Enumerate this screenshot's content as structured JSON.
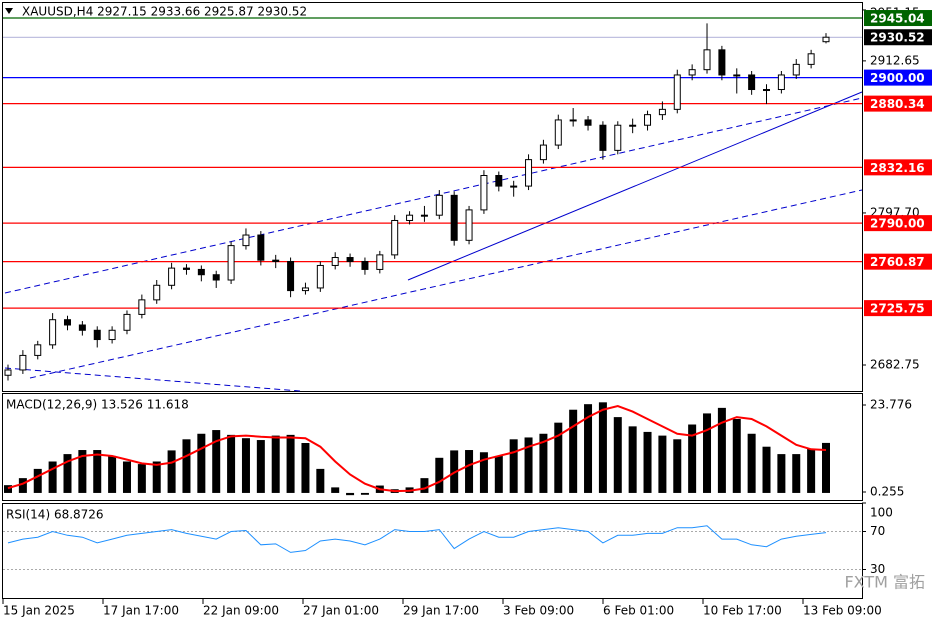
{
  "chart_data": {
    "type": "candlestick",
    "title": "XAUUSD,H4  2927.15 2933.66 2925.87 2930.52",
    "open": [
      2675,
      2679,
      2690,
      2698,
      2717,
      2713,
      2709,
      2702,
      2709,
      2721,
      2732,
      2743,
      2756,
      2755,
      2751,
      2747,
      2773,
      2781,
      2762,
      2761,
      2739,
      2741,
      2758,
      2764,
      2761,
      2755,
      2766,
      2792,
      2796,
      2796,
      2811,
      2777,
      2800,
      2826,
      2818,
      2818,
      2838,
      2849,
      2868,
      2868,
      2864,
      2845,
      2864,
      2864,
      2872,
      2876,
      2902,
      2906,
      2921,
      2902,
      2902,
      2891,
      2891,
      2902,
      2910,
      2927.15
    ],
    "high": [
      2683,
      2694,
      2701,
      2722,
      2720,
      2716,
      2712,
      2712,
      2724,
      2736,
      2747,
      2760,
      2759,
      2758,
      2754,
      2776,
      2786,
      2784,
      2766,
      2764,
      2745,
      2761,
      2768,
      2767,
      2764,
      2769,
      2796,
      2799,
      2803,
      2815,
      2814,
      2803,
      2830,
      2829,
      2822,
      2842,
      2853,
      2872,
      2877,
      2871,
      2867,
      2867,
      2869,
      2875,
      2882,
      2906,
      2910,
      2941,
      2924,
      2907,
      2905,
      2895,
      2905,
      2914,
      2921,
      2933.66
    ],
    "low": [
      2671,
      2676,
      2687,
      2695,
      2709,
      2705,
      2696,
      2699,
      2706,
      2718,
      2729,
      2740,
      2751,
      2746,
      2741,
      2744,
      2770,
      2758,
      2756,
      2734,
      2736,
      2738,
      2755,
      2757,
      2751,
      2752,
      2763,
      2789,
      2791,
      2793,
      2773,
      2774,
      2797,
      2814,
      2810,
      2815,
      2835,
      2846,
      2863,
      2860,
      2838,
      2842,
      2858,
      2860,
      2868,
      2873,
      2898,
      2903,
      2898,
      2888,
      2887,
      2880,
      2888,
      2899,
      2907,
      2925.87
    ],
    "close": [
      2679,
      2690,
      2698,
      2717,
      2713,
      2709,
      2702,
      2709,
      2721,
      2732,
      2743,
      2756,
      2755,
      2751,
      2747,
      2773,
      2781,
      2762,
      2761,
      2739,
      2741,
      2758,
      2764,
      2761,
      2755,
      2766,
      2792,
      2796,
      2796,
      2811,
      2777,
      2800,
      2826,
      2818,
      2818,
      2838,
      2849,
      2868,
      2868,
      2864,
      2845,
      2864,
      2864,
      2872,
      2876,
      2902,
      2906,
      2921,
      2902,
      2902,
      2891,
      2891,
      2902,
      2910,
      2918,
      2930.52
    ],
    "bull_color": "#ffffff",
    "bear_color": "#000000",
    "ylim": [
      2663.1,
      2956.4
    ],
    "yticks": [
      2951.15,
      2912.65,
      {
        "value": 2797.7,
        "label": "2797.70"
      },
      2682.75
    ],
    "levels": [
      {
        "value": 2945.04,
        "color": "#006400"
      },
      {
        "value": 2930.52,
        "color": "#000000"
      },
      {
        "value": 2900,
        "label": "2900.00",
        "color": "#0000ff"
      },
      {
        "value": 2880.34,
        "color": "#ff0000"
      },
      {
        "value": 2832.16,
        "color": "#ff0000"
      },
      {
        "value": 2790,
        "label": "2790.00",
        "color": "#ff0000"
      },
      {
        "value": 2760.87,
        "color": "#ff0000"
      },
      {
        "value": 2725.75,
        "color": "#ff0000"
      }
    ],
    "x_labels": [
      "15 Jan 2025",
      "17 Jan 17:00",
      "22 Jan 09:00",
      "27 Jan 01:00",
      "29 Jan 17:00",
      "3 Feb 09:00",
      "6 Feb 01:00",
      "10 Feb 17:00",
      "13 Feb 09:00"
    ],
    "macd": {
      "title": "MACD(12,26,9) 13.526 11.618",
      "histogram": [
        2.1,
        4.0,
        6.5,
        8.5,
        10.5,
        11.6,
        11.6,
        10.0,
        8.5,
        7.8,
        8.5,
        11.5,
        14.5,
        16.0,
        17.0,
        15.7,
        14.8,
        14.3,
        15.5,
        15.7,
        13.5,
        6.5,
        1.5,
        -0.6,
        -0.5,
        2.0,
        1.0,
        1.5,
        4.0,
        9.5,
        11.5,
        11.6,
        11.0,
        10.0,
        14.5,
        15.0,
        16.0,
        19.0,
        22.5,
        24.0,
        24.5,
        20.5,
        18.0,
        16.5,
        15.5,
        14.5,
        18.5,
        21.5,
        23.0,
        20.0,
        16.0,
        12.5,
        10.5,
        10.5,
        12.0,
        13.526
      ],
      "signal": [
        1.3,
        2.5,
        4.5,
        6.5,
        8.5,
        10.0,
        10.4,
        10.0,
        9.0,
        8.0,
        7.6,
        8.2,
        10.0,
        12.0,
        14.0,
        15.3,
        15.5,
        15.2,
        15.0,
        15.0,
        14.8,
        12.5,
        8.5,
        5.0,
        2.5,
        1.0,
        0.5,
        0.6,
        1.2,
        3.0,
        5.5,
        7.5,
        9.0,
        10.0,
        11.0,
        12.5,
        13.8,
        15.5,
        18.0,
        20.5,
        22.5,
        23.5,
        22.0,
        20.0,
        18.0,
        16.0,
        15.5,
        17.0,
        19.0,
        20.5,
        20.0,
        18.0,
        15.5,
        13.0,
        11.8,
        11.618
      ],
      "histogram_color": "#000000",
      "signal_color": "#ff0000",
      "ylim": [
        -1.91,
        26.75
      ],
      "yticks": [
        23.776,
        0.255
      ]
    },
    "rsi": {
      "title": "RSI(14) 68.8726",
      "values": [
        58,
        62,
        64,
        70,
        66,
        64,
        58,
        62,
        66,
        68,
        70,
        72,
        68,
        65,
        62,
        70,
        71,
        56,
        57,
        48,
        50,
        60,
        62,
        60,
        56,
        62,
        72,
        70,
        70,
        72,
        52,
        62,
        70,
        64,
        64,
        70,
        72,
        74,
        72,
        70,
        58,
        66,
        66,
        68,
        68,
        74,
        74,
        76,
        62,
        62,
        56,
        54,
        62,
        65,
        67,
        68.8726
      ],
      "color": "#1e90ff",
      "ylim": [
        0,
        100
      ],
      "yticks": [
        100,
        70,
        30
      ]
    },
    "watermark": "FXTM 富拓"
  }
}
